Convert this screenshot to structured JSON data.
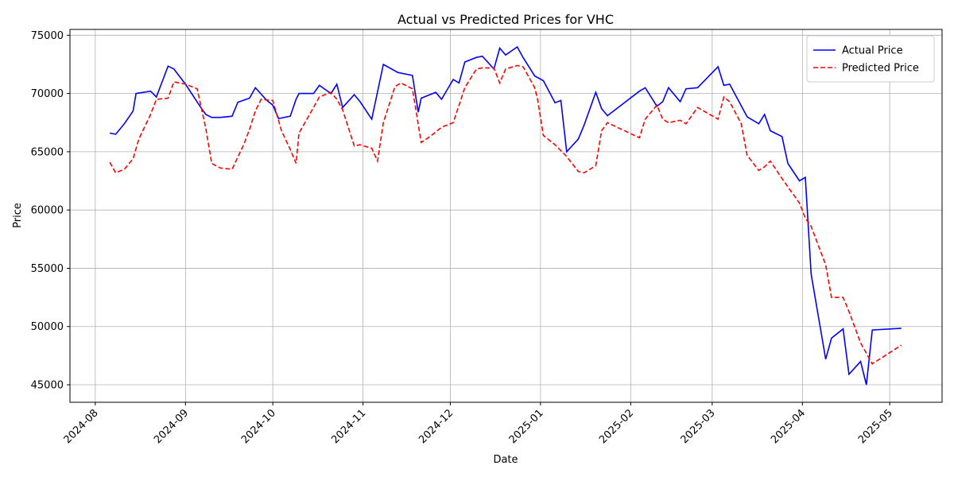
{
  "chart_data": {
    "type": "line",
    "title": "Actual vs Predicted Prices for VHC",
    "xlabel": "Date",
    "ylabel": "Price",
    "xlim": [
      -8.7,
      291
    ],
    "ylim": [
      43500,
      75500
    ],
    "xticks": [
      {
        "value": 0,
        "label": "2024-08"
      },
      {
        "value": 31,
        "label": "2024-09"
      },
      {
        "value": 61,
        "label": "2024-10"
      },
      {
        "value": 92,
        "label": "2024-11"
      },
      {
        "value": 122,
        "label": "2024-12"
      },
      {
        "value": 153,
        "label": "2025-01"
      },
      {
        "value": 184,
        "label": "2025-02"
      },
      {
        "value": 212,
        "label": "2025-03"
      },
      {
        "value": 243,
        "label": "2025-04"
      },
      {
        "value": 273,
        "label": "2025-05"
      }
    ],
    "yticks": [
      45000,
      50000,
      55000,
      60000,
      65000,
      70000,
      75000
    ],
    "grid": true,
    "legend": "upper right",
    "series": [
      {
        "name": "Actual Price",
        "color": "#0000ff",
        "dash": "solid",
        "x": [
          5,
          7,
          10,
          13,
          14,
          19,
          21,
          25,
          27,
          31,
          36,
          38,
          40,
          43,
          47,
          49,
          53,
          55,
          59,
          61,
          63,
          67,
          69,
          70,
          75,
          77,
          81,
          83,
          85,
          89,
          91,
          95,
          99,
          104,
          109,
          111,
          112,
          117,
          119,
          123,
          125,
          127,
          131,
          133,
          137,
          139,
          141,
          145,
          147,
          151,
          154,
          158,
          160,
          162,
          166,
          168,
          172,
          174,
          176,
          187,
          189,
          193,
          195,
          197,
          201,
          203,
          207,
          214,
          216,
          218,
          224,
          228,
          230,
          232,
          236,
          238,
          242,
          244,
          246,
          251,
          253,
          257,
          259,
          263,
          265,
          267,
          277
        ],
        "values": [
          66600,
          66500,
          67400,
          68500,
          70000,
          70200,
          69700,
          72350,
          72100,
          70800,
          68900,
          68200,
          67950,
          67950,
          68050,
          69250,
          69600,
          70500,
          69400,
          69000,
          67850,
          68050,
          69500,
          70000,
          70000,
          70700,
          70000,
          70800,
          68800,
          69900,
          69300,
          67800,
          72500,
          71800,
          71550,
          68400,
          69600,
          70100,
          69500,
          71200,
          70900,
          72700,
          73100,
          73200,
          72100,
          73900,
          73300,
          74000,
          73100,
          71500,
          71100,
          69200,
          69400,
          65000,
          66100,
          67300,
          70100,
          68700,
          68100,
          70200,
          70500,
          68900,
          69300,
          70500,
          69300,
          70400,
          70500,
          72300,
          70700,
          70800,
          68000,
          67400,
          68200,
          66800,
          66300,
          64000,
          62500,
          62800,
          54500,
          47200,
          49000,
          49800,
          45900,
          47000,
          45000,
          49700,
          49850
        ]
      },
      {
        "name": "Predicted Price",
        "color": "#ff0000",
        "dash": "dashed",
        "x": [
          5,
          7,
          10,
          13,
          15,
          19,
          21,
          25,
          27,
          31,
          35,
          38,
          40,
          43,
          47,
          51,
          53,
          55,
          57,
          61,
          64,
          67,
          69,
          70,
          75,
          77,
          81,
          83,
          85,
          89,
          91,
          95,
          97,
          99,
          103,
          105,
          109,
          112,
          115,
          119,
          123,
          127,
          131,
          133,
          137,
          139,
          141,
          145,
          147,
          151,
          152,
          154,
          158,
          162,
          166,
          168,
          172,
          174,
          176,
          187,
          189,
          193,
          195,
          197,
          201,
          203,
          207,
          214,
          216,
          218,
          222,
          224,
          228,
          230,
          232,
          236,
          238,
          242,
          244,
          246,
          251,
          253,
          257,
          259,
          263,
          267,
          277
        ],
        "values": [
          64100,
          63200,
          63500,
          64400,
          66100,
          68200,
          69500,
          69600,
          71000,
          70800,
          70400,
          67000,
          64000,
          63600,
          63500,
          65600,
          66900,
          68500,
          69500,
          69400,
          66800,
          65200,
          64000,
          66600,
          68800,
          69700,
          70100,
          69500,
          68600,
          65500,
          65600,
          65300,
          64200,
          67500,
          70600,
          70900,
          70400,
          65800,
          66300,
          67100,
          67500,
          70500,
          72100,
          72200,
          72200,
          70900,
          72100,
          72400,
          72300,
          70500,
          69500,
          66400,
          65600,
          64600,
          63300,
          63200,
          63800,
          66800,
          67500,
          66200,
          67800,
          69000,
          67800,
          67500,
          67700,
          67400,
          68800,
          67800,
          69700,
          69300,
          67400,
          64700,
          63400,
          63700,
          64200,
          62700,
          62000,
          60600,
          59300,
          58600,
          55300,
          52500,
          52500,
          51300,
          48600,
          46800,
          48400
        ]
      }
    ]
  }
}
